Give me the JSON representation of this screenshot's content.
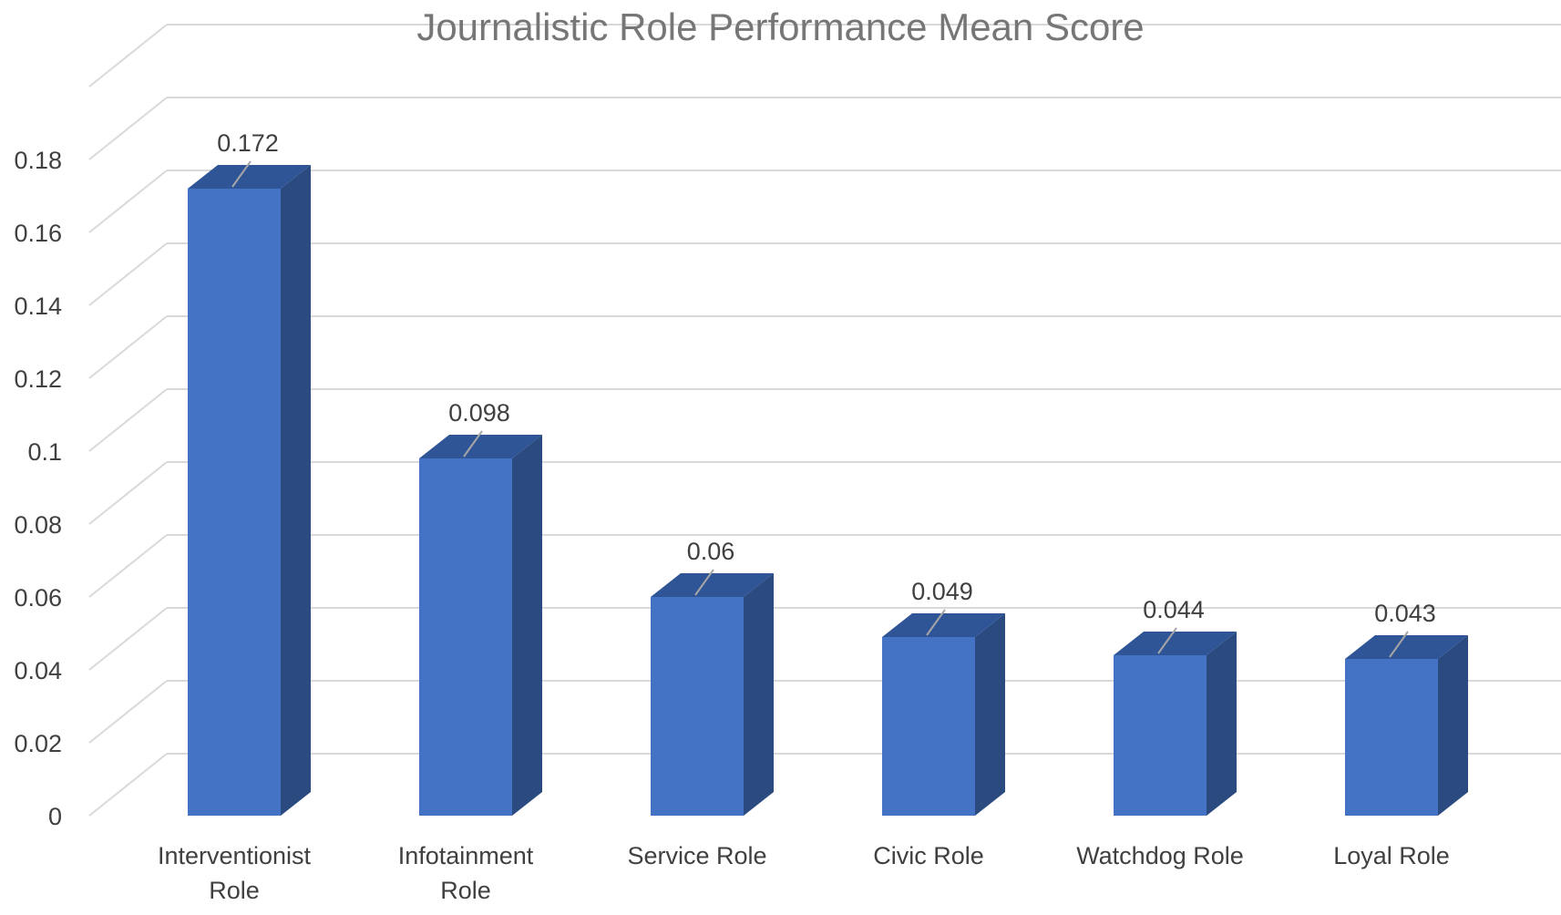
{
  "chart_data": {
    "type": "bar",
    "title": "Journalistic Role Performance Mean Score",
    "categories": [
      "Interventionist Role",
      "Infotainment Role",
      "Service Role",
      "Civic Role",
      "Watchdog Role",
      "Loyal Role"
    ],
    "category_lines": [
      [
        "Interventionist",
        "Role"
      ],
      [
        "Infotainment",
        "Role"
      ],
      [
        "Service Role"
      ],
      [
        "Civic Role"
      ],
      [
        "Watchdog Role"
      ],
      [
        "Loyal Role"
      ]
    ],
    "values": [
      0.172,
      0.098,
      0.06,
      0.049,
      0.044,
      0.043
    ],
    "data_labels": [
      "0.172",
      "0.098",
      "0.06",
      "0.049",
      "0.044",
      "0.043"
    ],
    "y_ticks": [
      0,
      0.02,
      0.04,
      0.06,
      0.08,
      0.1,
      0.12,
      0.14,
      0.16,
      0.18
    ],
    "y_tick_labels": [
      "0",
      "0.02",
      "0.04",
      "0.06",
      "0.08",
      "0.1",
      "0.12",
      "0.14",
      "0.16",
      "0.18"
    ],
    "ylim": [
      0,
      0.18
    ],
    "xlabel": "",
    "ylabel": "",
    "grid": true,
    "legend": "none",
    "style": "3d-column",
    "colors": {
      "bar_front": "#4472C4",
      "bar_side": "#2B4A80",
      "bar_top": "#2F5597",
      "grid": "#D9D9D9",
      "text": "#404040",
      "title": "#767676"
    }
  }
}
